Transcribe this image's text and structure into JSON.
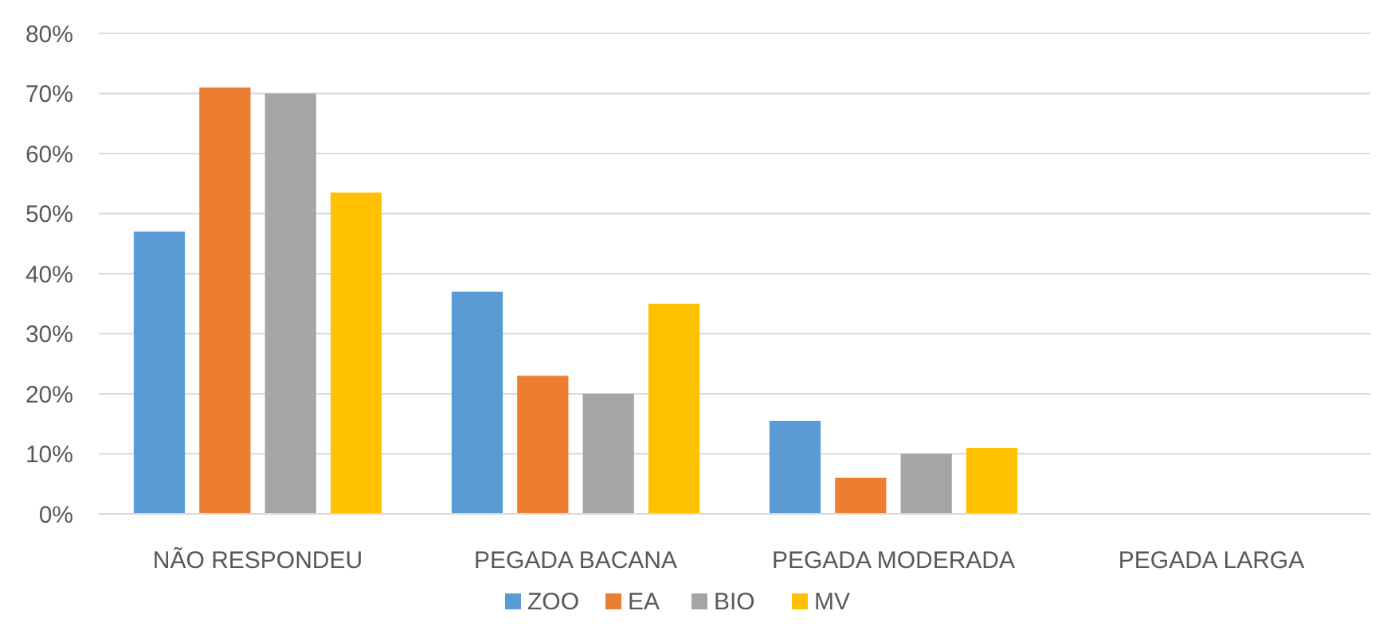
{
  "chart_data": {
    "type": "bar",
    "categories": [
      "NÃO RESPONDEU",
      "PEGADA BACANA",
      "PEGADA MODERADA",
      "PEGADA LARGA"
    ],
    "series": [
      {
        "name": "ZOO",
        "color": "#5b9bd5",
        "values": [
          47,
          37,
          15.5,
          0
        ]
      },
      {
        "name": "EA",
        "color": "#ed7d31",
        "values": [
          71,
          23,
          6,
          0
        ]
      },
      {
        "name": "BIO",
        "color": "#a5a5a5",
        "values": [
          70,
          20,
          10,
          0
        ]
      },
      {
        "name": "MV",
        "color": "#ffc000",
        "values": [
          53.5,
          35,
          11,
          0
        ]
      }
    ],
    "ylim": [
      0,
      80
    ],
    "yticks": [
      {
        "value": 0,
        "label": "0%"
      },
      {
        "value": 10,
        "label": "10%"
      },
      {
        "value": 20,
        "label": "20%"
      },
      {
        "value": 30,
        "label": "30%"
      },
      {
        "value": 40,
        "label": "40%"
      },
      {
        "value": 50,
        "label": "50%"
      },
      {
        "value": 60,
        "label": "60%"
      },
      {
        "value": 70,
        "label": "70%"
      },
      {
        "value": 80,
        "label": "80%"
      }
    ],
    "grid": "y",
    "legend": "bottom"
  }
}
